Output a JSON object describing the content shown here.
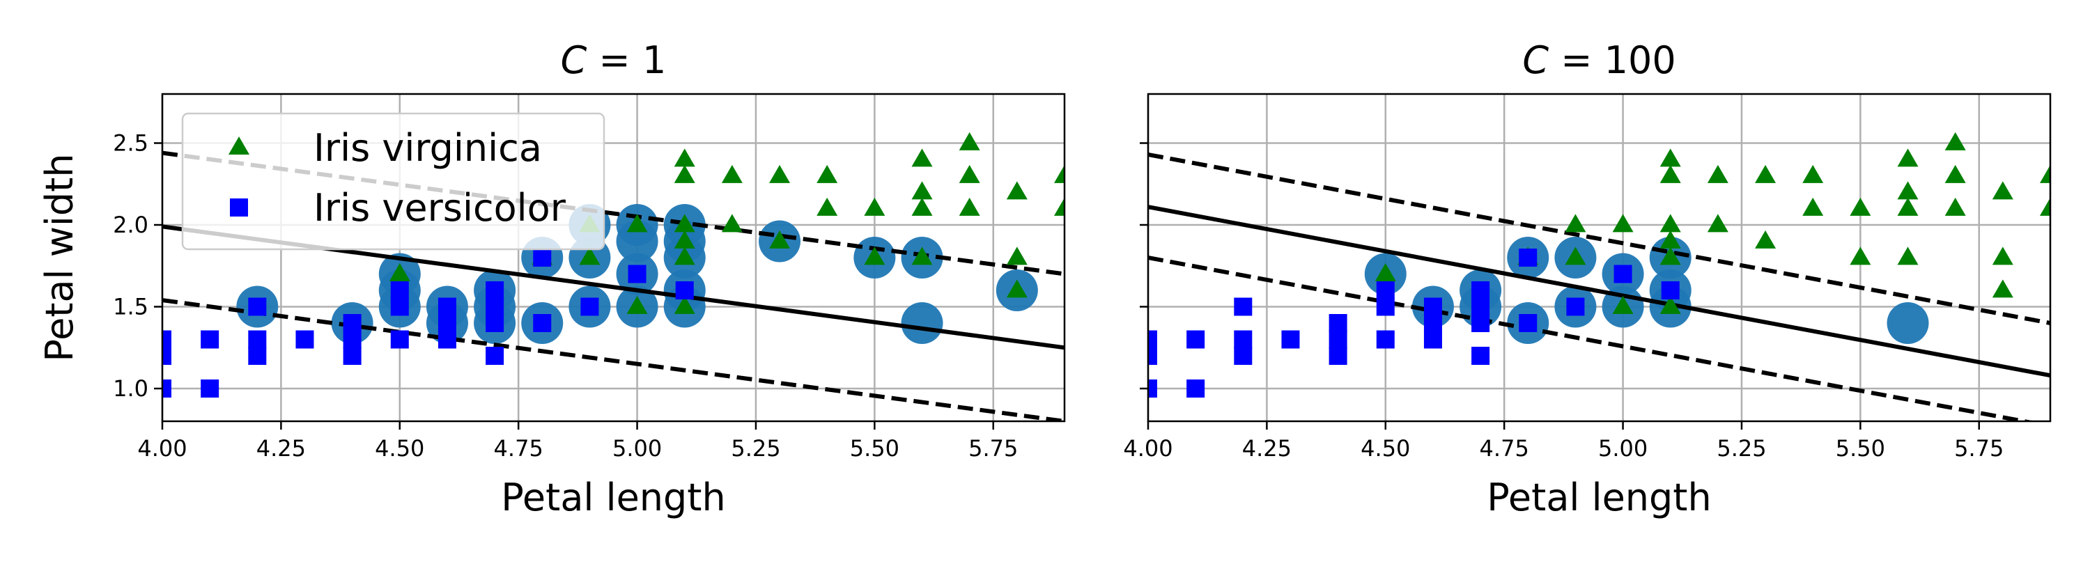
{
  "chart_data": [
    {
      "type": "scatter",
      "title_var": "C",
      "title_eq": " = ",
      "title_val": "1",
      "xlabel": "Petal length",
      "ylabel": "Petal width",
      "xlim": [
        4.0,
        5.9
      ],
      "ylim": [
        0.8,
        2.8
      ],
      "xticks": [
        "4.00",
        "4.25",
        "4.50",
        "4.75",
        "5.00",
        "5.25",
        "5.50",
        "5.75"
      ],
      "yticks": [
        "1.0",
        "1.5",
        "2.0",
        "2.5"
      ],
      "grid": true,
      "legend_position": "upper-left",
      "decision_boundary": {
        "x": [
          4.0,
          5.9
        ],
        "y": [
          1.99,
          1.25
        ]
      },
      "margin_upper": {
        "x": [
          4.0,
          5.9
        ],
        "y": [
          2.44,
          1.7
        ]
      },
      "margin_lower": {
        "x": [
          4.0,
          5.9
        ],
        "y": [
          1.54,
          0.8
        ]
      },
      "support_vectors": [
        [
          4.2,
          1.5
        ],
        [
          4.4,
          1.4
        ],
        [
          4.5,
          1.5
        ],
        [
          4.5,
          1.6
        ],
        [
          4.5,
          1.7
        ],
        [
          4.6,
          1.4
        ],
        [
          4.6,
          1.5
        ],
        [
          4.7,
          1.4
        ],
        [
          4.7,
          1.5
        ],
        [
          4.7,
          1.6
        ],
        [
          4.8,
          1.4
        ],
        [
          4.8,
          1.8
        ],
        [
          4.9,
          1.5
        ],
        [
          4.9,
          1.8
        ],
        [
          4.9,
          2.0
        ],
        [
          5.0,
          1.5
        ],
        [
          5.0,
          1.7
        ],
        [
          5.0,
          1.9
        ],
        [
          5.0,
          2.0
        ],
        [
          5.1,
          1.5
        ],
        [
          5.1,
          1.6
        ],
        [
          5.1,
          1.8
        ],
        [
          5.1,
          1.9
        ],
        [
          5.1,
          2.0
        ],
        [
          5.3,
          1.9
        ],
        [
          5.5,
          1.8
        ],
        [
          5.6,
          1.4
        ],
        [
          5.6,
          1.8
        ],
        [
          5.8,
          1.6
        ]
      ]
    },
    {
      "type": "scatter",
      "title_var": "C",
      "title_eq": " = ",
      "title_val": "100",
      "xlabel": "Petal length",
      "ylabel": "",
      "xlim": [
        4.0,
        5.9
      ],
      "ylim": [
        0.8,
        2.8
      ],
      "xticks": [
        "4.00",
        "4.25",
        "4.50",
        "4.75",
        "5.00",
        "5.25",
        "5.50",
        "5.75"
      ],
      "yticks": [
        "1.0",
        "1.5",
        "2.0",
        "2.5"
      ],
      "grid": true,
      "decision_boundary": {
        "x": [
          4.0,
          5.9
        ],
        "y": [
          2.11,
          1.08
        ]
      },
      "margin_upper": {
        "x": [
          4.0,
          5.9
        ],
        "y": [
          2.43,
          1.4
        ]
      },
      "margin_lower": {
        "x": [
          4.0,
          5.9
        ],
        "y": [
          1.8,
          0.77
        ]
      },
      "support_vectors": [
        [
          4.5,
          1.7
        ],
        [
          4.6,
          1.5
        ],
        [
          4.7,
          1.5
        ],
        [
          4.7,
          1.6
        ],
        [
          4.8,
          1.4
        ],
        [
          4.8,
          1.8
        ],
        [
          4.9,
          1.5
        ],
        [
          4.9,
          1.8
        ],
        [
          5.0,
          1.5
        ],
        [
          5.0,
          1.7
        ],
        [
          5.1,
          1.5
        ],
        [
          5.1,
          1.6
        ],
        [
          5.1,
          1.8
        ],
        [
          5.6,
          1.4
        ]
      ]
    }
  ],
  "series": [
    {
      "name": "Iris virginica",
      "marker": "triangle",
      "color": "#008000",
      "points": [
        [
          4.5,
          1.7
        ],
        [
          4.8,
          1.8
        ],
        [
          4.9,
          1.8
        ],
        [
          4.9,
          2.0
        ],
        [
          5.0,
          1.5
        ],
        [
          5.0,
          2.0
        ],
        [
          5.1,
          1.5
        ],
        [
          5.1,
          1.8
        ],
        [
          5.1,
          1.9
        ],
        [
          5.1,
          2.0
        ],
        [
          5.1,
          2.3
        ],
        [
          5.1,
          2.4
        ],
        [
          5.2,
          2.0
        ],
        [
          5.2,
          2.3
        ],
        [
          5.3,
          1.9
        ],
        [
          5.3,
          2.3
        ],
        [
          5.4,
          2.1
        ],
        [
          5.4,
          2.3
        ],
        [
          5.5,
          1.8
        ],
        [
          5.5,
          2.1
        ],
        [
          5.6,
          1.8
        ],
        [
          5.6,
          2.1
        ],
        [
          5.6,
          2.2
        ],
        [
          5.6,
          2.4
        ],
        [
          5.7,
          2.1
        ],
        [
          5.7,
          2.3
        ],
        [
          5.7,
          2.5
        ],
        [
          5.8,
          1.6
        ],
        [
          5.8,
          1.8
        ],
        [
          5.8,
          2.2
        ],
        [
          5.9,
          2.1
        ],
        [
          5.9,
          2.3
        ]
      ]
    },
    {
      "name": "Iris versicolor",
      "marker": "square",
      "color": "#0000ff",
      "points": [
        [
          4.0,
          1.0
        ],
        [
          4.0,
          1.2
        ],
        [
          4.0,
          1.3
        ],
        [
          4.1,
          1.0
        ],
        [
          4.1,
          1.3
        ],
        [
          4.2,
          1.2
        ],
        [
          4.2,
          1.3
        ],
        [
          4.2,
          1.5
        ],
        [
          4.3,
          1.3
        ],
        [
          4.4,
          1.2
        ],
        [
          4.4,
          1.3
        ],
        [
          4.4,
          1.4
        ],
        [
          4.5,
          1.3
        ],
        [
          4.5,
          1.5
        ],
        [
          4.5,
          1.6
        ],
        [
          4.6,
          1.3
        ],
        [
          4.6,
          1.4
        ],
        [
          4.6,
          1.5
        ],
        [
          4.7,
          1.2
        ],
        [
          4.7,
          1.4
        ],
        [
          4.7,
          1.5
        ],
        [
          4.7,
          1.6
        ],
        [
          4.8,
          1.4
        ],
        [
          4.8,
          1.8
        ],
        [
          4.9,
          1.5
        ],
        [
          5.0,
          1.7
        ],
        [
          5.1,
          1.6
        ]
      ]
    }
  ],
  "support_vector_color": "#1f77b4"
}
